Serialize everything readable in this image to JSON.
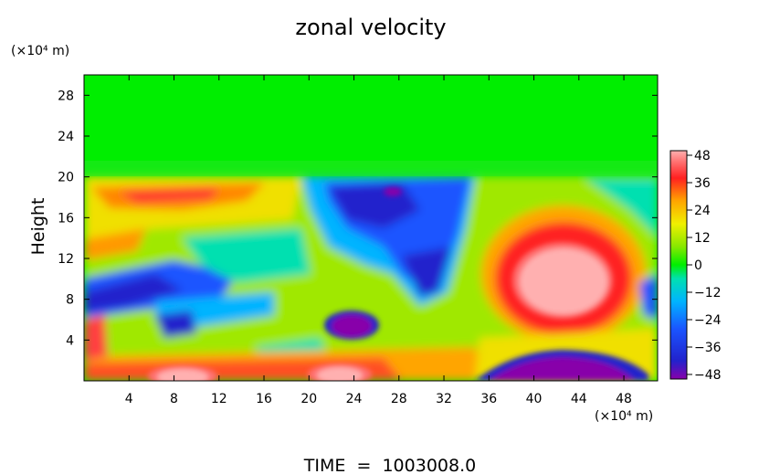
{
  "chart_data": {
    "type": "heatmap",
    "title": "zonal velocity",
    "ylabel": "Height",
    "y_unit": "(×10⁴ m)",
    "x_unit": "(×10⁴ m)",
    "xlim": [
      0,
      51
    ],
    "ylim": [
      0,
      30
    ],
    "x_ticks": [
      "4",
      "8",
      "12",
      "16",
      "20",
      "24",
      "28",
      "32",
      "36",
      "40",
      "44",
      "48"
    ],
    "y_ticks": [
      "4",
      "8",
      "12",
      "16",
      "20",
      "24",
      "28"
    ],
    "colorbar": {
      "range": [
        -48,
        48
      ],
      "ticks": [
        "48",
        "36",
        "24",
        "12",
        "0",
        "−12",
        "−24",
        "−36",
        "−48"
      ]
    },
    "footer": "TIME  =  1003008.0",
    "colors": {
      "background_green": "#00ee00",
      "max_pink": "#ffb0b0",
      "min_purple": "#8800aa"
    },
    "features": [
      {
        "name": "upper-layer-uniform",
        "x_range": [
          0,
          51
        ],
        "y_range": [
          20,
          30
        ],
        "value": 0
      },
      {
        "name": "positive-jet-core",
        "x": 43,
        "y": 9.5,
        "value": 48
      },
      {
        "name": "negative-surface-core",
        "x": 44,
        "y": 0.8,
        "value": -48
      },
      {
        "name": "negative-core-mid",
        "x": 23,
        "y": 5,
        "value": -44
      },
      {
        "name": "negative-band-upper-middle",
        "x": 30,
        "y": 14,
        "value": -36
      },
      {
        "name": "negative-band-left",
        "x": 6,
        "y": 8,
        "value": -38
      },
      {
        "name": "positive-surface-core-left",
        "x": 8,
        "y": 0.5,
        "value": 46
      },
      {
        "name": "positive-surface-core-mid",
        "x": 22,
        "y": 0.8,
        "value": 46
      }
    ]
  }
}
